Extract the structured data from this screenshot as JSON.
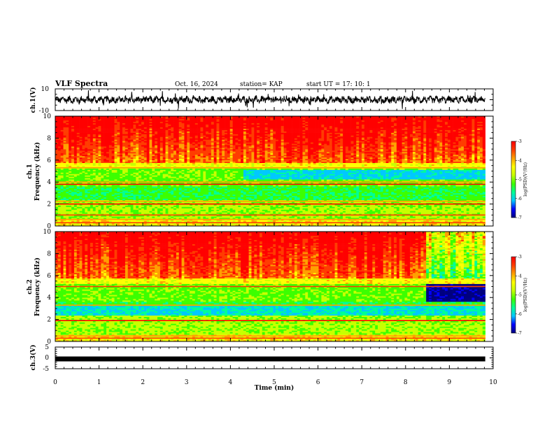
{
  "header": {
    "title": "VLF Spectra",
    "date": "Oct. 16, 2024",
    "station": "station= KAP",
    "start": "start  UT  =   17: 10: 1"
  },
  "chart_data": [
    {
      "panel": "ch1-waveform",
      "type": "line",
      "ylabel": "ch.1(V)",
      "ylim": [
        -10,
        10
      ],
      "yticks": [
        "10",
        "-10"
      ],
      "x_range_min": [
        0,
        9.82
      ],
      "amplitude_V": [
        -3,
        3
      ]
    },
    {
      "panel": "ch1-spectrogram",
      "type": "heatmap",
      "ylabel_channel": "ch.1",
      "ylabel": "Frequency  (kHz)",
      "ylim": [
        0,
        10
      ],
      "yticks": [
        "0",
        "2",
        "4",
        "6",
        "8",
        "10"
      ],
      "x_range_min": [
        0,
        9.82
      ],
      "colorbar": {
        "label": "log(PSD)(V²/Hz)",
        "range": [
          -7,
          -3
        ],
        "ticks": [
          "-3",
          "-4",
          "-5",
          "-6",
          "-7"
        ]
      }
    },
    {
      "panel": "ch2-spectrogram",
      "type": "heatmap",
      "ylabel_channel": "ch.2",
      "ylabel": "Frequency  (kHz)",
      "ylim": [
        0,
        10
      ],
      "yticks": [
        "0",
        "2",
        "4",
        "6",
        "8",
        "10"
      ],
      "x_range_min": [
        0,
        9.82
      ],
      "colorbar": {
        "label": "log(PSD)(V²/Hz)",
        "range": [
          -7,
          -3
        ],
        "ticks": [
          "-3",
          "-4",
          "-5",
          "-6",
          "-7"
        ]
      }
    },
    {
      "panel": "ch3-waveform",
      "type": "line",
      "ylabel": "ch.3(V)",
      "ylim": [
        -5,
        5
      ],
      "yticks": [
        "5",
        "0",
        "-5"
      ],
      "level_V": -0.5,
      "x_range_min": [
        0,
        9.82
      ]
    }
  ],
  "xaxis": {
    "label": "Time  (min)",
    "range": [
      0,
      10
    ],
    "ticks": [
      "0",
      "1",
      "2",
      "3",
      "4",
      "5",
      "6",
      "7",
      "8",
      "9",
      "10"
    ]
  },
  "colorscale": [
    "#000080",
    "#0000ff",
    "#00c8ff",
    "#00ff96",
    "#3cff00",
    "#c8ff00",
    "#ffff00",
    "#ffa000",
    "#ff3c00",
    "#ff0000"
  ]
}
